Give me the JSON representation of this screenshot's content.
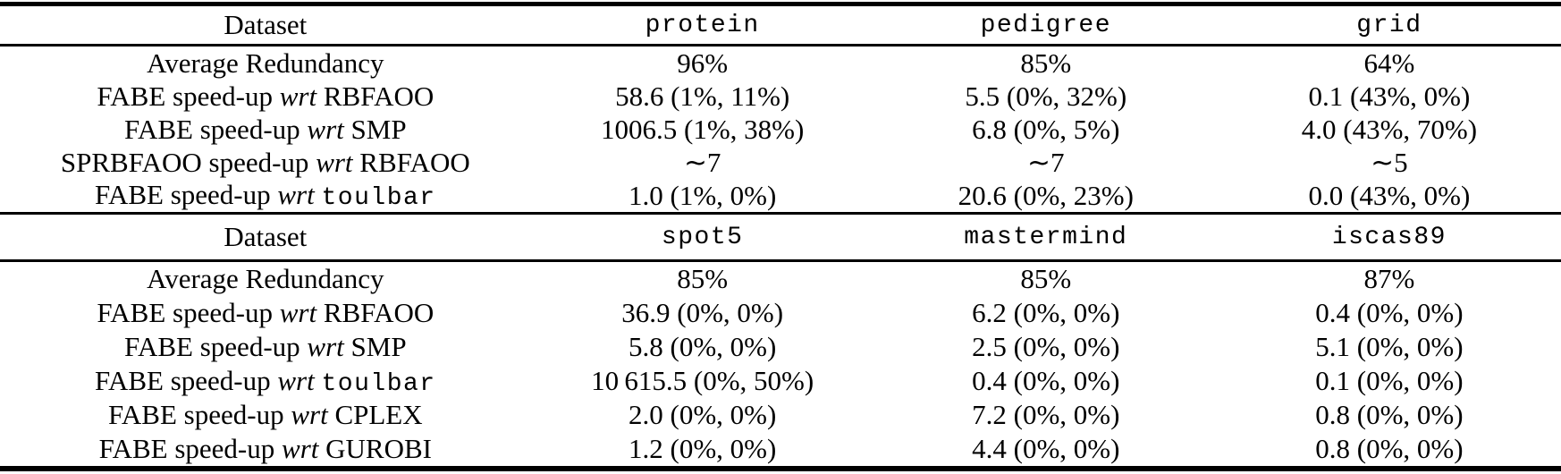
{
  "colors": {
    "text": "#000000",
    "background": "#ffffff",
    "rules": "#000000"
  },
  "table": {
    "sections": [
      {
        "header": {
          "label": "Dataset",
          "datasets": [
            "protein",
            "pedigree",
            "grid"
          ]
        },
        "rows": [
          {
            "label": {
              "pre": "Average Redundancy",
              "wrt": "",
              "target": "",
              "target_class": "t-serif"
            },
            "values": [
              "96%",
              "85%",
              "64%"
            ]
          },
          {
            "label": {
              "pre": "FABE speed-up",
              "wrt": "wrt",
              "target": "RBFAOO",
              "target_class": "t-serif"
            },
            "values": [
              "58.6 (1%, 11%)",
              "5.5 (0%, 32%)",
              "0.1 (43%, 0%)"
            ]
          },
          {
            "label": {
              "pre": "FABE speed-up",
              "wrt": "wrt",
              "target": "SMP",
              "target_class": "t-serif"
            },
            "values": [
              "1006.5 (1%, 38%)",
              "6.8 (0%, 5%)",
              "4.0 (43%, 70%)"
            ]
          },
          {
            "label": {
              "pre": "SPRBFAOO speed-up",
              "wrt": "wrt",
              "target": "RBFAOO",
              "target_class": "t-serif"
            },
            "values": [
              "∼7",
              "∼7",
              "∼5"
            ]
          },
          {
            "label": {
              "pre": "FABE speed-up",
              "wrt": "wrt",
              "target": "toulbar",
              "target_class": "t-mono"
            },
            "values": [
              "1.0 (1%, 0%)",
              "20.6 (0%, 23%)",
              "0.0 (43%, 0%)"
            ]
          }
        ]
      },
      {
        "header": {
          "label": "Dataset",
          "datasets": [
            "spot5",
            "mastermind",
            "iscas89"
          ]
        },
        "rows": [
          {
            "label": {
              "pre": "Average Redundancy",
              "wrt": "",
              "target": "",
              "target_class": "t-serif"
            },
            "values": [
              "85%",
              "85%",
              "87%"
            ]
          },
          {
            "label": {
              "pre": "FABE speed-up",
              "wrt": "wrt",
              "target": "RBFAOO",
              "target_class": "t-serif"
            },
            "values": [
              "36.9 (0%, 0%)",
              "6.2 (0%, 0%)",
              "0.4 (0%, 0%)"
            ]
          },
          {
            "label": {
              "pre": "FABE speed-up",
              "wrt": "wrt",
              "target": "SMP",
              "target_class": "t-serif"
            },
            "values": [
              "5.8 (0%, 0%)",
              "2.5 (0%, 0%)",
              "5.1 (0%, 0%)"
            ]
          },
          {
            "label": {
              "pre": "FABE speed-up",
              "wrt": "wrt",
              "target": "toulbar",
              "target_class": "t-mono"
            },
            "values": [
              "10 615.5 (0%, 50%)",
              "0.4 (0%, 0%)",
              "0.1 (0%, 0%)"
            ]
          },
          {
            "label": {
              "pre": "FABE speed-up",
              "wrt": "wrt",
              "target": "CPLEX",
              "target_class": "t-serif"
            },
            "values": [
              "2.0 (0%, 0%)",
              "7.2 (0%, 0%)",
              "0.8 (0%, 0%)"
            ]
          },
          {
            "label": {
              "pre": "FABE speed-up",
              "wrt": "wrt",
              "target": "GUROBI",
              "target_class": "t-serif"
            },
            "values": [
              "1.2 (0%, 0%)",
              "4.4 (0%, 0%)",
              "0.8 (0%, 0%)"
            ]
          }
        ]
      }
    ]
  }
}
